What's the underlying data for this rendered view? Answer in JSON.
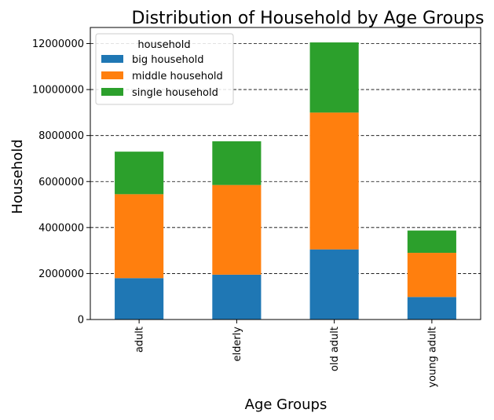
{
  "chart_data": {
    "type": "bar",
    "stacked": true,
    "title": "Distribution of Household by Age Groups",
    "xlabel": "Age Groups",
    "ylabel": "Household",
    "categories": [
      "adult",
      "elderly",
      "old adult",
      "young adult"
    ],
    "series": [
      {
        "name": "big household",
        "color": "#1f77b4",
        "values": [
          1800000,
          1950000,
          3050000,
          980000
        ]
      },
      {
        "name": "middle household",
        "color": "#ff7f0e",
        "values": [
          3650000,
          3900000,
          5950000,
          1920000
        ]
      },
      {
        "name": "single household",
        "color": "#2ca02c",
        "values": [
          1850000,
          1900000,
          3050000,
          970000
        ]
      }
    ],
    "ylim": [
      0,
      12700000
    ],
    "yticks": [
      0,
      2000000,
      4000000,
      6000000,
      8000000,
      10000000,
      12000000
    ],
    "ytick_labels": [
      "0",
      "2000000",
      "4000000",
      "6000000",
      "8000000",
      "10000000",
      "12000000"
    ],
    "grid": "y-dashed",
    "legend": {
      "title": "household",
      "placement": "top-left"
    }
  }
}
